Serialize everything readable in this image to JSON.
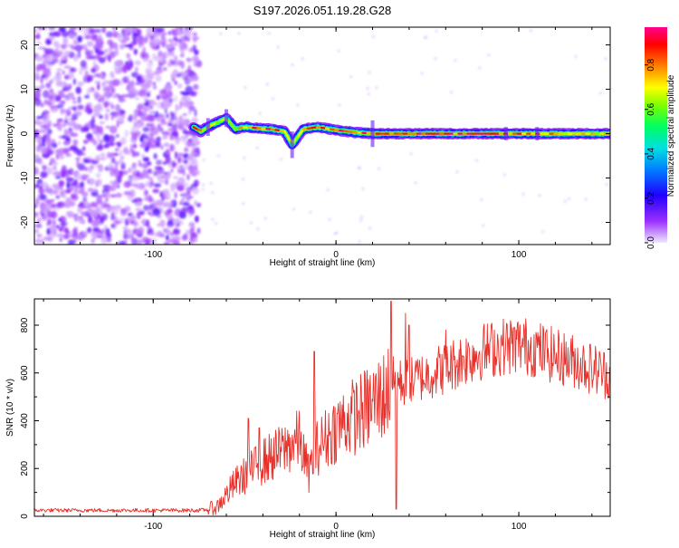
{
  "title": "S197.2026.051.19.28.G28",
  "chart_data": [
    {
      "type": "heatmap",
      "xlabel": "Height of straight line (km)",
      "ylabel": "Frequency (Hz)",
      "xlim": [
        -165,
        150
      ],
      "ylim": [
        -25,
        24
      ],
      "xticks": [
        -100,
        0,
        100
      ],
      "yticks": [
        -20,
        -10,
        0,
        10,
        20
      ],
      "noise_region_x": [
        -165,
        -78
      ],
      "signal_region_x": [
        -78,
        150
      ],
      "signal_track": [
        {
          "x": -78,
          "y": 1.5,
          "amp": 0.9
        },
        {
          "x": -74,
          "y": 0.5,
          "amp": 0.85
        },
        {
          "x": -70,
          "y": 1.5,
          "amp": 0.9
        },
        {
          "x": -65,
          "y": 2.5,
          "amp": 0.8
        },
        {
          "x": -60,
          "y": 3.5,
          "amp": 0.75
        },
        {
          "x": -55,
          "y": 1.0,
          "amp": 0.8
        },
        {
          "x": -50,
          "y": 1.5,
          "amp": 0.9
        },
        {
          "x": -42,
          "y": 1.2,
          "amp": 0.95
        },
        {
          "x": -35,
          "y": 1.0,
          "amp": 0.9
        },
        {
          "x": -28,
          "y": 0.5,
          "amp": 0.85
        },
        {
          "x": -24,
          "y": -2.5,
          "amp": 0.75
        },
        {
          "x": -18,
          "y": 1.0,
          "amp": 0.9
        },
        {
          "x": -10,
          "y": 1.5,
          "amp": 0.95
        },
        {
          "x": 0,
          "y": 0.8,
          "amp": 0.95
        },
        {
          "x": 10,
          "y": 0.3,
          "amp": 1.0
        },
        {
          "x": 20,
          "y": 0.0,
          "amp": 0.95
        },
        {
          "x": 30,
          "y": 0.0,
          "amp": 1.0
        },
        {
          "x": 45,
          "y": 0.0,
          "amp": 1.0
        },
        {
          "x": 60,
          "y": 0.0,
          "amp": 1.0
        },
        {
          "x": 75,
          "y": 0.0,
          "amp": 1.0
        },
        {
          "x": 90,
          "y": 0.0,
          "amp": 0.95
        },
        {
          "x": 105,
          "y": 0.0,
          "amp": 0.9
        },
        {
          "x": 120,
          "y": 0.0,
          "amp": 0.85
        },
        {
          "x": 135,
          "y": 0.0,
          "amp": 0.85
        },
        {
          "x": 150,
          "y": 0.0,
          "amp": 0.8
        }
      ],
      "colorbar": {
        "label": "Normalized spectral amplitude",
        "ticks": [
          "0.0",
          "0.2",
          "0.4",
          "0.6",
          "0.8"
        ],
        "colors": [
          "#e8e0ff",
          "#8000ff",
          "#0000ff",
          "#00c8ff",
          "#00ff80",
          "#80ff00",
          "#ffff00",
          "#ff8000",
          "#ff0000",
          "#ff0080"
        ]
      }
    },
    {
      "type": "line",
      "xlabel": "Height of straight line (km)",
      "ylabel": "SNR (10 * v/v)",
      "xlim": [
        -165,
        150
      ],
      "ylim": [
        0,
        910
      ],
      "xticks": [
        -100,
        0,
        100
      ],
      "yticks": [
        0,
        200,
        400,
        600,
        800
      ],
      "color": "#e8302a",
      "series": [
        {
          "name": "SNR",
          "x": [
            -165,
            -140,
            -120,
            -100,
            -90,
            -80,
            -75,
            -70,
            -65,
            -60,
            -55,
            -50,
            -45,
            -40,
            -35,
            -30,
            -25,
            -20,
            -15,
            -12,
            -10,
            -5,
            0,
            5,
            10,
            15,
            20,
            25,
            28,
            30,
            32,
            35,
            40,
            45,
            50,
            55,
            60,
            65,
            70,
            80,
            90,
            100,
            110,
            120,
            130,
            140,
            150
          ],
          "y": [
            25,
            25,
            25,
            25,
            25,
            25,
            25,
            28,
            40,
            90,
            140,
            170,
            200,
            230,
            250,
            270,
            300,
            320,
            180,
            250,
            290,
            330,
            370,
            400,
            420,
            440,
            470,
            500,
            520,
            560,
            570,
            560,
            560,
            580,
            590,
            610,
            620,
            640,
            660,
            690,
            710,
            720,
            700,
            670,
            650,
            620,
            590
          ]
        }
      ],
      "spikes": [
        {
          "x": -48,
          "y": 410
        },
        {
          "x": -42,
          "y": 370
        },
        {
          "x": -12,
          "y": 690
        },
        {
          "x": 30,
          "y": 900
        },
        {
          "x": 33,
          "y": 30
        },
        {
          "x": 38,
          "y": 850
        },
        {
          "x": 40,
          "y": 800
        },
        {
          "x": 60,
          "y": 780
        }
      ]
    }
  ]
}
